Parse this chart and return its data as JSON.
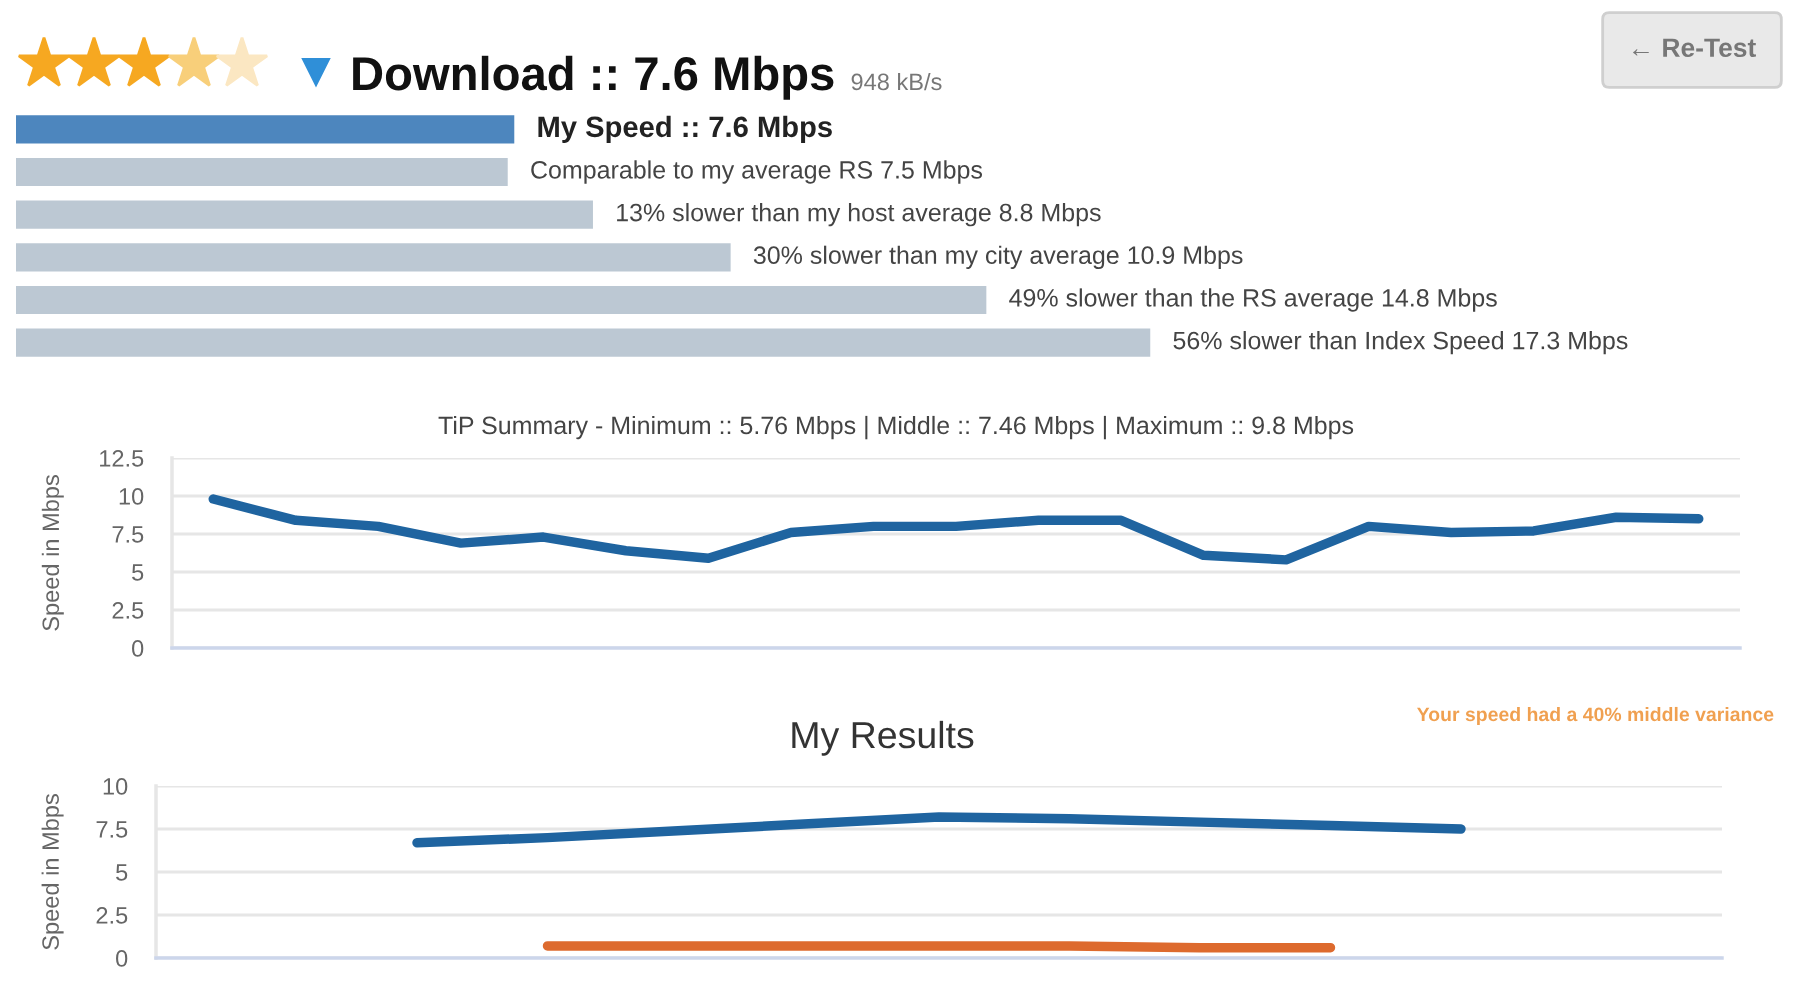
{
  "chart_data": [
    {
      "type": "bar",
      "title": "Download :: 7.6 Mbps",
      "subtitle": "948 kB/s",
      "orientation": "horizontal",
      "categories": [
        null,
        null,
        null,
        null,
        null,
        null
      ],
      "values": [
        7.6,
        7.5,
        8.8,
        10.9,
        14.8,
        17.3
      ],
      "colors": [
        "#4d86be",
        "#bcc8d3",
        "#bcc8d3",
        "#bcc8d3",
        "#bcc8d3",
        "#bcc8d3"
      ],
      "value_labels": [
        "My Speed :: 7.6 Mbps",
        "Comparable to my average RS 7.5 Mbps",
        "13% slower than my host average 8.8 Mbps",
        "30% slower than my city average 10.9 Mbps",
        "49% slower than the RS average 14.8 Mbps",
        "56% slower than Index Speed 17.3 Mbps"
      ],
      "tick_labels": false,
      "annotations": [
        "← Re-Test"
      ]
    },
    {
      "type": "line",
      "title": "TiP Summary - Minimum :: 5.76 Mbps | Middle :: 7.46 Mbps | Maximum :: 9.8 Mbps",
      "ylabel": "Speed in Mbps",
      "categories": [
        null,
        null,
        null,
        null,
        null,
        null,
        null,
        null,
        null,
        null,
        null,
        null,
        null,
        null,
        null,
        null,
        null,
        null,
        null
      ],
      "series": [
        {
          "color": "#1f64a0",
          "values": [
            9.8,
            8.4,
            8.0,
            6.9,
            7.3,
            6.4,
            5.9,
            7.6,
            8.0,
            8.0,
            8.4,
            8.4,
            6.1,
            5.8,
            8.0,
            7.6,
            7.7,
            8.6,
            8.5
          ]
        }
      ],
      "ylim": [
        0,
        12.5
      ],
      "yticks": [
        0,
        2.5,
        5,
        7.5,
        10,
        12.5
      ],
      "grid": "y",
      "tick_labels": "y"
    },
    {
      "type": "line",
      "title": "My Results",
      "ylabel": "Speed in Mbps",
      "categories": [
        null,
        null,
        null,
        null,
        null,
        null,
        null,
        null,
        null
      ],
      "series": [
        {
          "color": "#1f64a0",
          "values": [
            6.7,
            7.0,
            7.4,
            7.8,
            8.2,
            8.1,
            7.9,
            7.7,
            7.5
          ]
        },
        {
          "color": "#dd6a2e",
          "values": [
            null,
            0.7,
            0.7,
            0.7,
            0.7,
            0.7,
            0.6,
            0.6,
            null
          ]
        }
      ],
      "ylim": [
        0,
        10
      ],
      "yticks": [
        0,
        2.5,
        5,
        7.5,
        10
      ],
      "grid": "y",
      "tick_labels": "y",
      "annotations": [
        "Your speed had a 40% middle variance"
      ]
    }
  ]
}
